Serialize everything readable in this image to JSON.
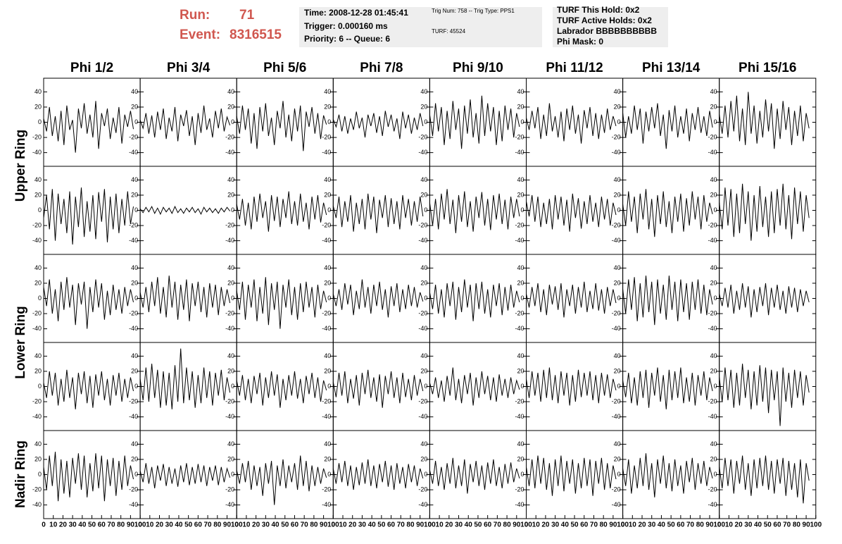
{
  "header": {
    "run_label": "Run:",
    "run": "71",
    "event_label": "Event:",
    "event": "8316515",
    "box1": [
      "Time: 2008-12-28 01:45:41",
      "Trigger: 0.000160 ms",
      "Priority: 6 -- Queue: 6"
    ],
    "box2": [
      "Trig Num: 758 -- Trig Type: PPS1",
      "TURF: 45524"
    ],
    "box3": [
      "TURF This Hold: 0x2",
      "TURF Active Holds: 0x2",
      "Labrador BBBBBBBBBB",
      "Phi Mask: 0"
    ]
  },
  "chart_data": {
    "type": "line",
    "columns": [
      "Phi 1/2",
      "Phi 3/4",
      "Phi 5/6",
      "Phi 7/8",
      "Phi 9/10",
      "Phi 11/12",
      "Phi 13/14",
      "Phi 15/16"
    ],
    "rows": [
      "Upper Ring",
      "Lower Ring",
      "Nadir Ring"
    ],
    "color": "#000000",
    "xlim": [
      0,
      100
    ],
    "xticks": [
      0,
      10,
      20,
      30,
      40,
      50,
      60,
      70,
      80,
      90,
      100
    ],
    "ylim": [
      -58,
      58
    ],
    "yticks": [
      -40,
      -20,
      0,
      20,
      40
    ],
    "x": [
      0,
      3,
      6,
      9,
      12,
      15,
      18,
      21,
      24,
      27,
      30,
      33,
      36,
      39,
      42,
      45,
      48,
      51,
      54,
      57,
      60,
      63,
      66,
      69,
      72,
      75,
      78,
      81,
      84,
      87,
      90,
      93
    ],
    "panels": [
      [
        5,
        -12,
        20,
        -18,
        8,
        -25,
        15,
        -30,
        22,
        -10,
        3,
        -40,
        18,
        -8,
        25,
        -15,
        10,
        -20,
        28,
        -35,
        12,
        -5,
        18,
        -22,
        6,
        -14,
        20,
        -28,
        10,
        -6,
        15,
        -9
      ],
      [
        3,
        -8,
        12,
        -15,
        9,
        -20,
        14,
        -10,
        18,
        -22,
        6,
        -12,
        20,
        -25,
        10,
        -5,
        16,
        -18,
        8,
        -30,
        12,
        -14,
        22,
        -10,
        5,
        -20,
        15,
        -8,
        18,
        -12,
        7,
        -4
      ],
      [
        8,
        -15,
        22,
        -10,
        18,
        -28,
        12,
        -35,
        20,
        -12,
        25,
        -18,
        6,
        -30,
        15,
        -8,
        28,
        -20,
        10,
        -25,
        18,
        -12,
        22,
        -38,
        14,
        -6,
        20,
        -15,
        12,
        -22,
        9,
        -3
      ],
      [
        4,
        -6,
        10,
        -12,
        8,
        -15,
        5,
        -10,
        14,
        -8,
        6,
        -20,
        10,
        -5,
        12,
        -14,
        8,
        -18,
        15,
        -6,
        10,
        -12,
        5,
        -22,
        14,
        -8,
        10,
        -15,
        6,
        -10,
        12,
        -5
      ],
      [
        10,
        -18,
        25,
        -12,
        20,
        -30,
        15,
        -22,
        28,
        -10,
        18,
        -35,
        22,
        -15,
        30,
        -20,
        12,
        -28,
        35,
        -18,
        25,
        -12,
        20,
        -30,
        15,
        -25,
        22,
        -10,
        18,
        -20,
        12,
        -6
      ],
      [
        6,
        -10,
        15,
        -8,
        20,
        -22,
        10,
        -18,
        25,
        -12,
        8,
        -20,
        14,
        -25,
        18,
        -10,
        22,
        -15,
        10,
        -28,
        16,
        -8,
        20,
        -18,
        12,
        -22,
        10,
        -14,
        18,
        -10,
        8,
        -5
      ],
      [
        12,
        -20,
        8,
        -15,
        22,
        -10,
        18,
        -28,
        14,
        -12,
        20,
        -8,
        25,
        -18,
        10,
        -35,
        16,
        -12,
        22,
        -20,
        8,
        -15,
        18,
        -25,
        12,
        -10,
        20,
        -14,
        8,
        -18,
        15,
        -7
      ],
      [
        10,
        -15,
        22,
        -20,
        28,
        -12,
        35,
        -25,
        18,
        -30,
        40,
        -15,
        22,
        -28,
        15,
        -20,
        30,
        -12,
        25,
        -35,
        18,
        -22,
        28,
        -10,
        20,
        -30,
        15,
        -18,
        22,
        -25,
        12,
        -8
      ],
      [
        -10,
        20,
        -25,
        28,
        -40,
        22,
        -18,
        15,
        -30,
        25,
        -45,
        18,
        -22,
        30,
        -35,
        12,
        -28,
        20,
        -38,
        24,
        -15,
        28,
        -42,
        18,
        -25,
        22,
        -30,
        15,
        -20,
        25,
        -18,
        5
      ],
      [
        2,
        -3,
        4,
        -2,
        5,
        -4,
        3,
        -5,
        4,
        -2,
        3,
        -4,
        5,
        -3,
        2,
        -4,
        3,
        -2,
        4,
        -3,
        2,
        -5,
        4,
        -2,
        3,
        -3,
        2,
        -4,
        3,
        -2,
        4,
        -1
      ],
      [
        8,
        -12,
        15,
        -20,
        10,
        -25,
        18,
        -15,
        22,
        -10,
        12,
        -28,
        20,
        -14,
        18,
        -22,
        15,
        -10,
        25,
        -18,
        12,
        -20,
        22,
        -15,
        10,
        -25,
        18,
        -12,
        20,
        -16,
        10,
        -6
      ],
      [
        6,
        -10,
        18,
        -22,
        12,
        -15,
        20,
        -28,
        10,
        -18,
        15,
        -25,
        22,
        -12,
        18,
        -30,
        14,
        -10,
        20,
        -22,
        16,
        -18,
        12,
        -25,
        20,
        -10,
        15,
        -20,
        12,
        -15,
        18,
        -8
      ],
      [
        10,
        -20,
        15,
        -25,
        22,
        -12,
        28,
        -18,
        14,
        -30,
        20,
        -15,
        25,
        -22,
        12,
        -28,
        18,
        -10,
        24,
        -20,
        15,
        -26,
        20,
        -12,
        22,
        -18,
        14,
        -25,
        18,
        -10,
        15,
        -8
      ],
      [
        12,
        -8,
        20,
        -15,
        18,
        -22,
        10,
        -18,
        15,
        -25,
        20,
        -12,
        18,
        -20,
        14,
        -28,
        22,
        -10,
        16,
        -24,
        12,
        -18,
        20,
        -15,
        10,
        -22,
        18,
        -12,
        15,
        -20,
        10,
        -6
      ],
      [
        8,
        -20,
        25,
        -15,
        18,
        -30,
        22,
        -12,
        28,
        -25,
        15,
        -35,
        20,
        -18,
        25,
        -22,
        12,
        -30,
        18,
        -15,
        22,
        -28,
        16,
        -20,
        25,
        -12,
        18,
        -25,
        20,
        -15,
        10,
        -5
      ],
      [
        10,
        -25,
        30,
        -20,
        28,
        -35,
        22,
        -30,
        35,
        -18,
        25,
        -40,
        20,
        -28,
        32,
        -22,
        18,
        -35,
        25,
        -30,
        28,
        -20,
        35,
        -25,
        20,
        -38,
        30,
        -18,
        25,
        -28,
        20,
        -10
      ],
      [
        15,
        -10,
        25,
        -20,
        12,
        -30,
        22,
        -15,
        28,
        -12,
        18,
        -35,
        20,
        -8,
        22,
        -40,
        15,
        -18,
        25,
        -12,
        20,
        -28,
        10,
        -22,
        18,
        -15,
        12,
        -20,
        15,
        -10,
        12,
        -5
      ],
      [
        8,
        -12,
        15,
        -18,
        22,
        -10,
        28,
        -20,
        15,
        -25,
        30,
        -12,
        22,
        -28,
        18,
        -15,
        25,
        -30,
        20,
        -10,
        22,
        -18,
        15,
        -25,
        20,
        -12,
        18,
        -22,
        15,
        -10,
        12,
        -6
      ],
      [
        10,
        -15,
        22,
        -28,
        18,
        -12,
        25,
        -30,
        15,
        -20,
        28,
        -35,
        20,
        -15,
        22,
        -40,
        18,
        -12,
        25,
        -22,
        15,
        -28,
        20,
        -18,
        22,
        -12,
        15,
        -25,
        18,
        -14,
        10,
        -5
      ],
      [
        6,
        -10,
        12,
        -15,
        20,
        -8,
        18,
        -22,
        10,
        -14,
        25,
        -12,
        15,
        -20,
        18,
        -10,
        22,
        -15,
        12,
        -25,
        16,
        -10,
        20,
        -18,
        12,
        -14,
        18,
        -10,
        15,
        -12,
        8,
        -4
      ],
      [
        8,
        -14,
        18,
        -20,
        12,
        -25,
        20,
        -10,
        22,
        -28,
        15,
        -18,
        25,
        -12,
        18,
        -30,
        20,
        -14,
        22,
        -20,
        12,
        -25,
        18,
        -10,
        20,
        -22,
        15,
        -16,
        18,
        -12,
        10,
        -5
      ],
      [
        6,
        -12,
        15,
        -10,
        20,
        -18,
        12,
        -22,
        18,
        -8,
        16,
        -15,
        20,
        -25,
        12,
        -10,
        18,
        -20,
        15,
        -12,
        22,
        -18,
        10,
        -14,
        20,
        -16,
        12,
        -20,
        15,
        -10,
        12,
        -6
      ],
      [
        12,
        -20,
        25,
        -15,
        28,
        -30,
        20,
        -25,
        30,
        -18,
        22,
        -35,
        25,
        -20,
        18,
        -28,
        30,
        -15,
        22,
        -30,
        25,
        -18,
        20,
        -28,
        22,
        -15,
        25,
        -20,
        18,
        -22,
        12,
        -8
      ],
      [
        6,
        -10,
        14,
        -12,
        18,
        -20,
        10,
        -15,
        20,
        -12,
        16,
        -25,
        12,
        -18,
        15,
        -10,
        20,
        -22,
        14,
        -12,
        18,
        -15,
        10,
        -20,
        16,
        -12,
        14,
        -18,
        12,
        -10,
        10,
        -5
      ],
      [
        5,
        -15,
        20,
        -12,
        18,
        -25,
        10,
        -20,
        22,
        -15,
        12,
        -30,
        18,
        -10,
        20,
        -22,
        14,
        -28,
        16,
        -12,
        20,
        -18,
        10,
        -25,
        15,
        -12,
        18,
        -20,
        10,
        -15,
        12,
        -6
      ],
      [
        10,
        -18,
        25,
        -20,
        30,
        -15,
        22,
        -28,
        20,
        -25,
        18,
        -30,
        28,
        -20,
        50,
        -22,
        25,
        -18,
        20,
        -28,
        15,
        -22,
        25,
        -15,
        20,
        -25,
        18,
        -12,
        22,
        -18,
        12,
        -8
      ],
      [
        8,
        -12,
        15,
        -18,
        10,
        -22,
        14,
        -10,
        18,
        -25,
        12,
        -15,
        20,
        -12,
        16,
        -28,
        10,
        -18,
        15,
        -12,
        20,
        -16,
        10,
        -22,
        14,
        -10,
        18,
        -15,
        12,
        -20,
        8,
        -5
      ],
      [
        6,
        -14,
        18,
        -12,
        20,
        -22,
        10,
        -16,
        15,
        -25,
        18,
        -10,
        22,
        -15,
        12,
        -20,
        16,
        -28,
        14,
        -10,
        20,
        -15,
        12,
        -22,
        18,
        -14,
        10,
        -18,
        15,
        -12,
        10,
        -6
      ],
      [
        5,
        -10,
        12,
        -15,
        8,
        -20,
        14,
        -12,
        25,
        -18,
        10,
        -22,
        15,
        -10,
        18,
        -25,
        12,
        -15,
        20,
        -10,
        14,
        -18,
        12,
        -20,
        16,
        -12,
        10,
        -15,
        12,
        -10,
        8,
        -4
      ],
      [
        10,
        -15,
        20,
        -12,
        18,
        -20,
        22,
        -15,
        25,
        -18,
        15,
        -22,
        20,
        -12,
        18,
        -25,
        15,
        -20,
        22,
        -14,
        18,
        -12,
        20,
        -18,
        15,
        -22,
        18,
        -12,
        16,
        -15,
        10,
        -5
      ],
      [
        8,
        -14,
        18,
        -22,
        12,
        -25,
        20,
        -15,
        22,
        -28,
        18,
        -12,
        25,
        -20,
        15,
        -30,
        22,
        -18,
        20,
        -15,
        25,
        -22,
        12,
        -20,
        18,
        -25,
        15,
        -12,
        20,
        -18,
        12,
        -6
      ],
      [
        12,
        -20,
        25,
        -18,
        22,
        -28,
        18,
        -25,
        30,
        -15,
        22,
        -30,
        20,
        -25,
        28,
        -20,
        25,
        -35,
        22,
        -18,
        20,
        -52,
        25,
        -20,
        18,
        -28,
        22,
        -15,
        20,
        -25,
        15,
        -8
      ],
      [
        10,
        -20,
        25,
        -15,
        30,
        -35,
        20,
        -25,
        18,
        -30,
        22,
        -12,
        28,
        -20,
        25,
        -30,
        15,
        -22,
        28,
        -18,
        25,
        -35,
        20,
        -15,
        22,
        -28,
        18,
        -20,
        25,
        -15,
        12,
        -6
      ],
      [
        5,
        -10,
        15,
        -12,
        10,
        -18,
        12,
        -8,
        14,
        -15,
        10,
        -12,
        8,
        -16,
        12,
        -10,
        15,
        -14,
        10,
        -12,
        14,
        -10,
        12,
        -15,
        10,
        -8,
        12,
        -14,
        10,
        -10,
        8,
        -4
      ],
      [
        6,
        -12,
        15,
        -10,
        18,
        -20,
        12,
        -15,
        10,
        -28,
        15,
        -12,
        18,
        -40,
        12,
        -15,
        20,
        -18,
        12,
        -10,
        15,
        -20,
        25,
        -15,
        18,
        -22,
        12,
        -15,
        10,
        -12,
        8,
        -4
      ],
      [
        8,
        -12,
        15,
        -10,
        18,
        -15,
        12,
        -20,
        10,
        -14,
        16,
        -12,
        20,
        -15,
        12,
        -18,
        14,
        -10,
        18,
        -16,
        12,
        -20,
        15,
        -12,
        10,
        -18,
        14,
        -10,
        12,
        -15,
        8,
        -5
      ],
      [
        6,
        -12,
        18,
        -15,
        10,
        -20,
        15,
        -12,
        22,
        -18,
        12,
        -15,
        20,
        -25,
        14,
        -10,
        18,
        -15,
        12,
        -20,
        16,
        -12,
        20,
        -15,
        10,
        -18,
        14,
        -12,
        16,
        -10,
        8,
        -5
      ],
      [
        10,
        -15,
        20,
        -18,
        25,
        -12,
        22,
        -20,
        15,
        -28,
        20,
        -15,
        25,
        -22,
        18,
        -12,
        20,
        -25,
        15,
        -18,
        22,
        -15,
        20,
        -28,
        18,
        -12,
        22,
        -20,
        15,
        -18,
        12,
        -6
      ],
      [
        8,
        -15,
        20,
        -25,
        12,
        -18,
        22,
        -15,
        28,
        -20,
        15,
        -30,
        20,
        -12,
        25,
        -18,
        15,
        -22,
        20,
        -15,
        12,
        -25,
        18,
        -10,
        22,
        -20,
        15,
        -12,
        18,
        -15,
        10,
        -5
      ],
      [
        10,
        -18,
        22,
        -15,
        20,
        -25,
        18,
        -12,
        25,
        -20,
        15,
        -28,
        20,
        -18,
        22,
        -15,
        25,
        -20,
        18,
        -25,
        20,
        -12,
        22,
        -28,
        18,
        -20,
        15,
        -30,
        20,
        -38,
        15,
        -8
      ]
    ]
  }
}
